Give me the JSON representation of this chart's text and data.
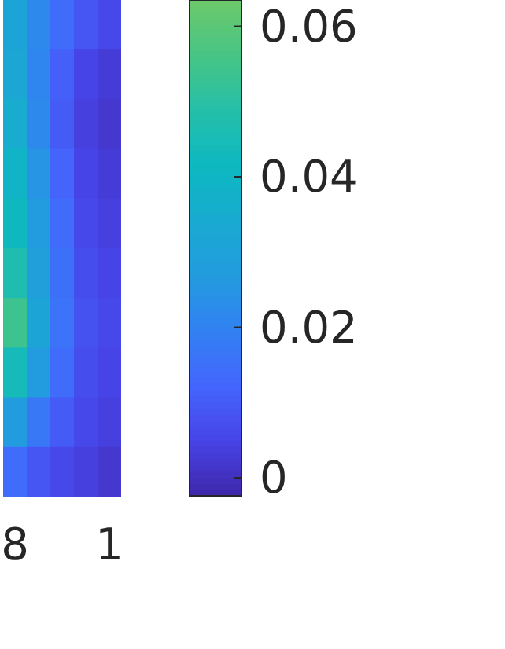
{
  "chart_data": {
    "type": "heatmap",
    "categories": [
      "8",
      null,
      null,
      null,
      "1"
    ],
    "y_categories": [
      null,
      null,
      null,
      null,
      null,
      null,
      null,
      null,
      null,
      null
    ],
    "tick_labels": "x",
    "cells": [
      [
        0.031,
        0.022,
        0.014,
        0.009,
        0.006
      ],
      [
        0.032,
        0.021,
        0.011,
        0.005,
        0.003
      ],
      [
        0.035,
        0.022,
        0.01,
        0.004,
        0.002
      ],
      [
        0.039,
        0.025,
        0.012,
        0.005,
        0.003
      ],
      [
        0.042,
        0.027,
        0.014,
        0.006,
        0.004
      ],
      [
        0.047,
        0.029,
        0.015,
        0.007,
        0.005
      ],
      [
        0.054,
        0.031,
        0.016,
        0.008,
        0.006
      ],
      [
        0.044,
        0.027,
        0.014,
        0.007,
        0.005
      ],
      [
        0.027,
        0.017,
        0.01,
        0.006,
        0.004
      ],
      [
        0.014,
        0.009,
        0.006,
        0.004,
        0.002
      ]
    ],
    "clim": [
      -0.0025,
      0.0635
    ],
    "cticks": [
      0,
      0.02,
      0.04,
      0.06
    ]
  }
}
